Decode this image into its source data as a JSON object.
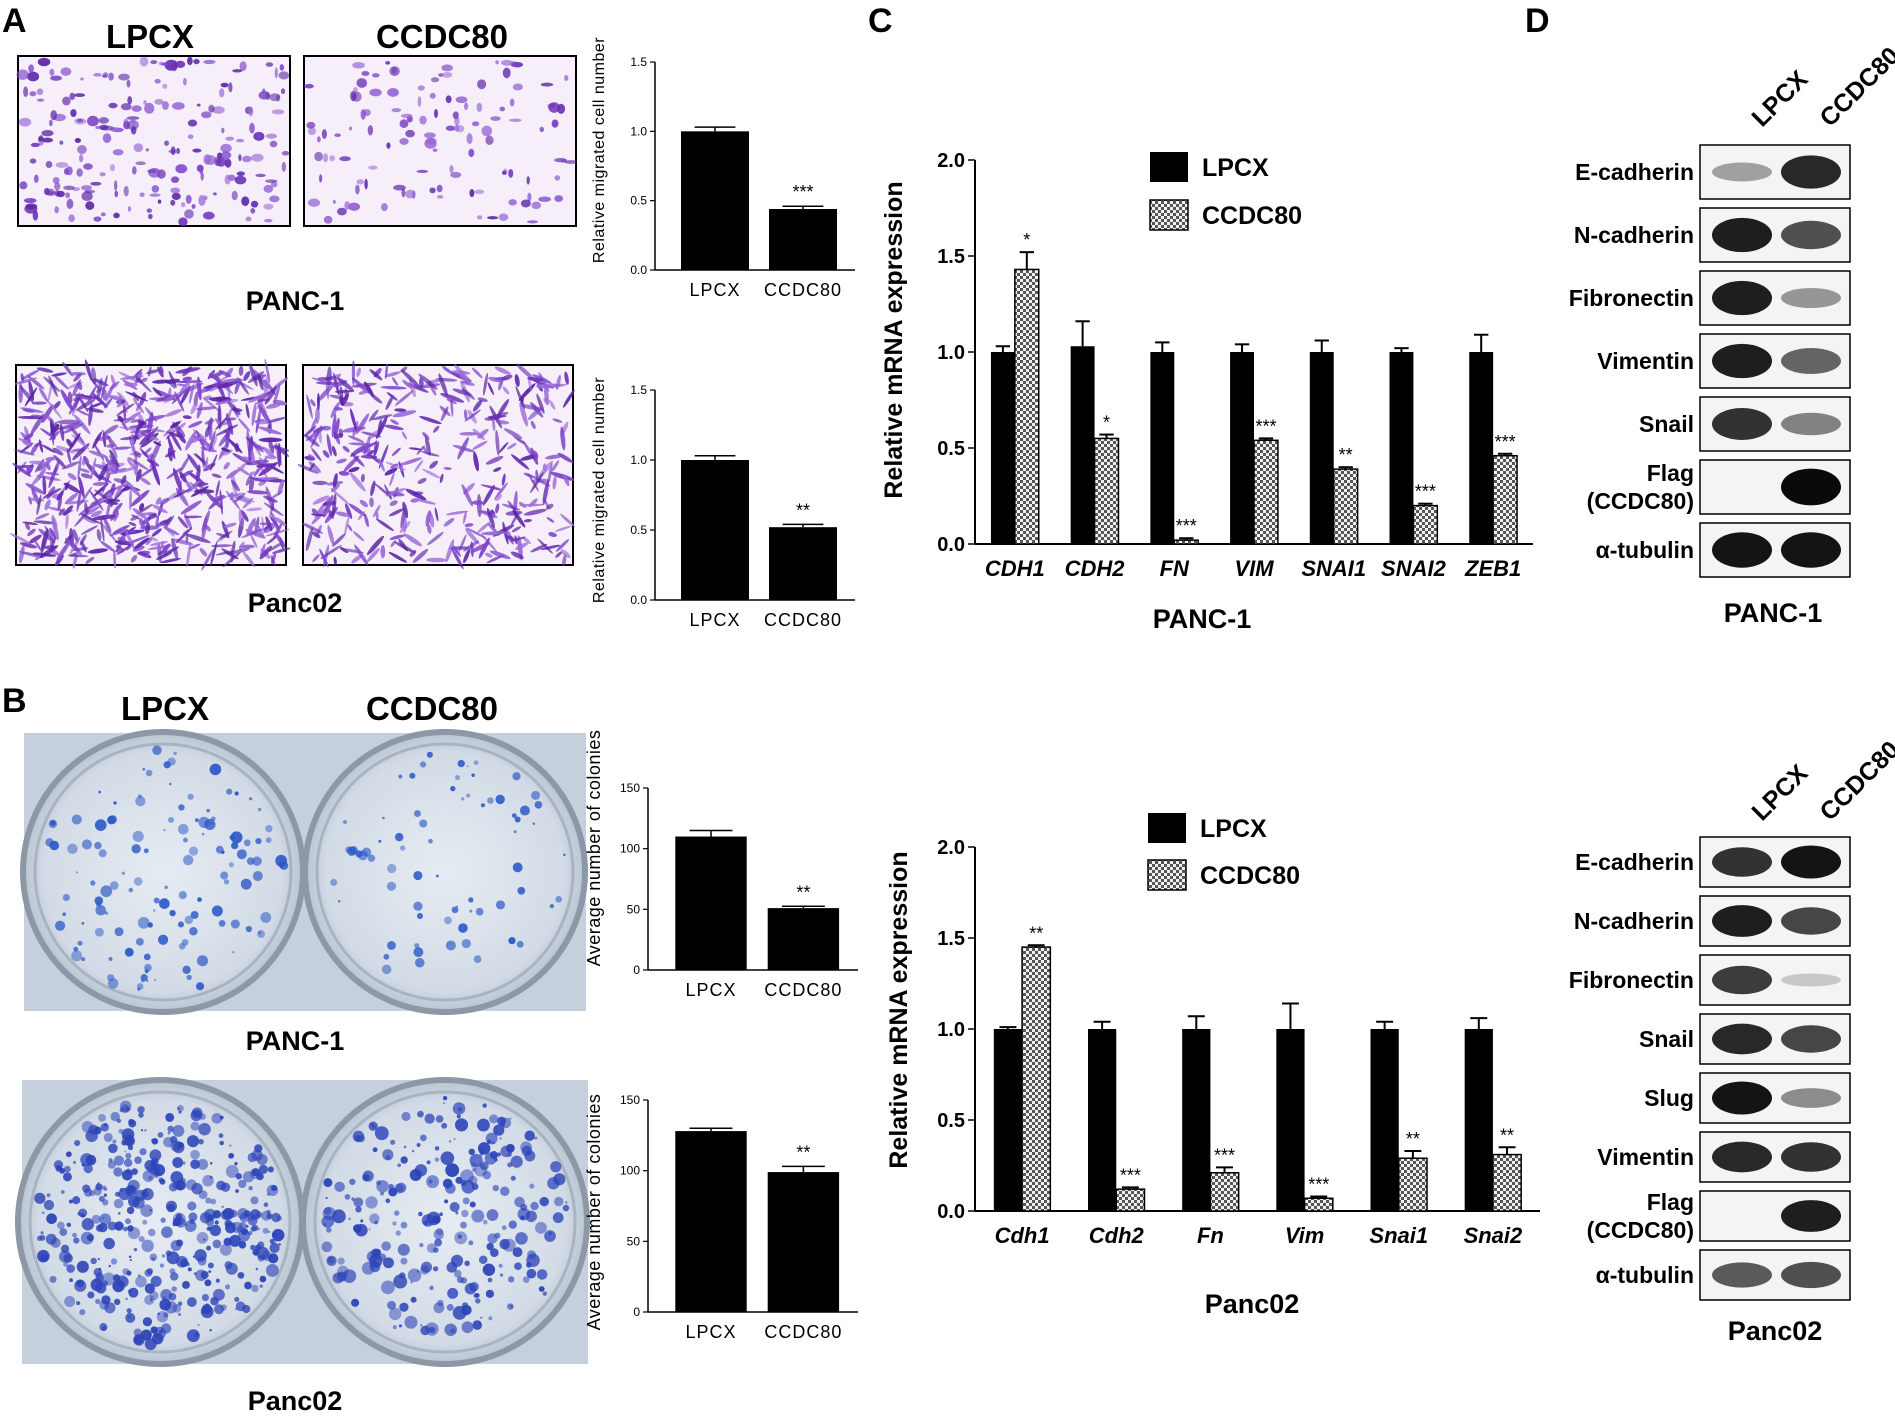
{
  "panels": {
    "A": {
      "letter": "A",
      "col_left": "LPCX",
      "col_right": "CCDC80",
      "cell_top": "PANC-1",
      "cell_bottom": "Panc02",
      "charts": [
        {
          "ylabel": "Relative migrated cell number",
          "categories": [
            "LPCX",
            "CCDC80"
          ],
          "values": [
            1.0,
            0.44
          ],
          "errors": [
            0.03,
            0.02
          ],
          "sig": [
            "",
            "***"
          ],
          "ylim": [
            0,
            1.5
          ],
          "yticks": [
            "0.0",
            "0.5",
            "1.0",
            "1.5"
          ]
        },
        {
          "ylabel": "Relative migrated cell number",
          "categories": [
            "LPCX",
            "CCDC80"
          ],
          "values": [
            1.0,
            0.52
          ],
          "errors": [
            0.03,
            0.02
          ],
          "sig": [
            "",
            "**"
          ],
          "ylim": [
            0,
            1.5
          ],
          "yticks": [
            "0.0",
            "0.5",
            "1.0",
            "1.5"
          ]
        }
      ]
    },
    "B": {
      "letter": "B",
      "col_left": "LPCX",
      "col_right": "CCDC80",
      "cell_top": "PANC-1",
      "cell_bottom": "Panc02",
      "charts": [
        {
          "ylabel": "Average number of colonies",
          "categories": [
            "LPCX",
            "CCDC80"
          ],
          "values": [
            110,
            51
          ],
          "errors": [
            5,
            1.5
          ],
          "sig": [
            "",
            "**"
          ],
          "ylim": [
            0,
            150
          ],
          "yticks": [
            "0",
            "50",
            "100",
            "150"
          ]
        },
        {
          "ylabel": "Average number of colonies",
          "categories": [
            "LPCX",
            "CCDC80"
          ],
          "values": [
            128,
            99
          ],
          "errors": [
            2,
            4
          ],
          "sig": [
            "",
            "**"
          ],
          "ylim": [
            0,
            150
          ],
          "yticks": [
            "0",
            "50",
            "100",
            "150"
          ]
        }
      ]
    },
    "C": {
      "letter": "C",
      "legend": [
        "LPCX",
        "CCDC80"
      ],
      "top": {
        "xlabel": "PANC-1",
        "ylabel": "Relative mRNA expression",
        "ylim": [
          0,
          2.0
        ],
        "yticks": [
          "0.0",
          "0.5",
          "1.0",
          "1.5",
          "2.0"
        ],
        "categories": [
          "CDH1",
          "CDH2",
          "FN",
          "VIM",
          "SNAI1",
          "SNAI2",
          "ZEB1"
        ],
        "lpcx": [
          1.0,
          1.03,
          1.0,
          1.0,
          1.0,
          1.0,
          1.0
        ],
        "lpcx_err": [
          0.03,
          0.13,
          0.05,
          0.04,
          0.06,
          0.02,
          0.09
        ],
        "ccdc80": [
          1.43,
          0.55,
          0.02,
          0.54,
          0.39,
          0.2,
          0.46
        ],
        "ccdc80_err": [
          0.09,
          0.02,
          0.01,
          0.01,
          0.01,
          0.01,
          0.01
        ],
        "sig": [
          "*",
          "*",
          "***",
          "***",
          "**",
          "***",
          "***"
        ]
      },
      "bottom": {
        "xlabel": "Panc02",
        "ylabel": "Relative mRNA expression",
        "ylim": [
          0,
          2.0
        ],
        "yticks": [
          "0.0",
          "0.5",
          "1.0",
          "1.5",
          "2.0"
        ],
        "categories": [
          "Cdh1",
          "Cdh2",
          "Fn",
          "Vim",
          "Snai1",
          "Snai2"
        ],
        "lpcx": [
          1.0,
          1.0,
          1.0,
          1.0,
          1.0,
          1.0
        ],
        "lpcx_err": [
          0.01,
          0.04,
          0.07,
          0.14,
          0.04,
          0.06
        ],
        "ccdc80": [
          1.45,
          0.12,
          0.21,
          0.07,
          0.29,
          0.31
        ],
        "ccdc80_err": [
          0.01,
          0.01,
          0.03,
          0.01,
          0.04,
          0.04
        ],
        "sig": [
          "**",
          "***",
          "***",
          "***",
          "**",
          "**"
        ]
      }
    },
    "D": {
      "letter": "D",
      "top": {
        "lanes": [
          "LPCX",
          "CCDC80"
        ],
        "cell": "PANC-1",
        "rows": [
          {
            "label": "E-cadherin",
            "levels": [
              0.25,
              0.85
            ]
          },
          {
            "label": "N-cadherin",
            "levels": [
              0.9,
              0.65
            ]
          },
          {
            "label": "Fibronectin",
            "levels": [
              0.9,
              0.3
            ]
          },
          {
            "label": "Vimentin",
            "levels": [
              0.9,
              0.55
            ]
          },
          {
            "label": "Snail",
            "levels": [
              0.8,
              0.4
            ]
          },
          {
            "label": "Flag\n(CCDC80)",
            "levels": [
              0.0,
              1.0
            ]
          },
          {
            "label": "α-tubulin",
            "levels": [
              0.95,
              0.95
            ]
          }
        ]
      },
      "bottom": {
        "lanes": [
          "LPCX",
          "CCDC80"
        ],
        "cell": "Panc02",
        "rows": [
          {
            "label": "E-cadherin",
            "levels": [
              0.8,
              0.95
            ]
          },
          {
            "label": "N-cadherin",
            "levels": [
              0.9,
              0.7
            ]
          },
          {
            "label": "Fibronectin",
            "levels": [
              0.75,
              0.05
            ]
          },
          {
            "label": "Snail",
            "levels": [
              0.85,
              0.7
            ]
          },
          {
            "label": "Slug",
            "levels": [
              0.95,
              0.35
            ]
          },
          {
            "label": "Vimentin",
            "levels": [
              0.85,
              0.8
            ]
          },
          {
            "label": "Flag\n(CCDC80)",
            "levels": [
              0.0,
              0.9
            ]
          },
          {
            "label": "α-tubulin",
            "levels": [
              0.6,
              0.65
            ]
          }
        ]
      }
    }
  },
  "colors": {
    "lpcx_bar": "#000000",
    "ccdc80_pattern": "#bfbfbf",
    "crystal_violet": "#7a3fc8",
    "colony_blue": "#2c4fc0"
  }
}
